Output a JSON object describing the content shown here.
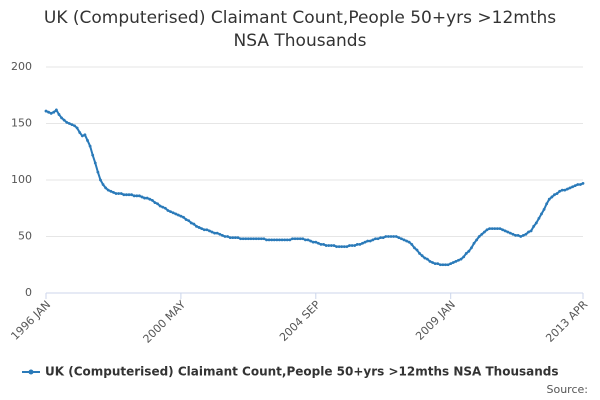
{
  "chart_data": {
    "type": "line",
    "title": [
      "UK (Computerised) Claimant Count,People 50+yrs >12mths",
      "NSA Thousands"
    ],
    "source": "Source:",
    "categories": [
      "1996 JAN",
      null,
      null,
      null,
      null,
      null,
      null,
      null,
      null,
      null,
      null,
      null,
      null,
      null,
      null,
      null,
      null,
      null,
      null,
      null,
      null,
      null,
      null,
      null,
      null,
      null,
      null,
      null,
      null,
      null,
      null,
      null,
      null,
      null,
      null,
      null,
      null,
      null,
      null,
      null,
      null,
      null,
      null,
      null,
      null,
      null,
      null,
      null,
      null,
      null,
      null,
      null,
      "2000 MAY",
      null,
      null,
      null,
      null,
      null,
      null,
      null,
      null,
      null,
      null,
      null,
      null,
      null,
      null,
      null,
      null,
      null,
      null,
      null,
      null,
      null,
      null,
      null,
      null,
      null,
      null,
      null,
      null,
      null,
      null,
      null,
      null,
      null,
      null,
      null,
      null,
      null,
      null,
      null,
      null,
      null,
      null,
      null,
      null,
      null,
      null,
      null,
      null,
      null,
      null,
      null,
      "2004 SEP",
      null,
      null,
      null,
      null,
      null,
      null,
      null,
      null,
      null,
      null,
      null,
      null,
      null,
      null,
      null,
      null,
      null,
      null,
      null,
      null,
      null,
      null,
      null,
      null,
      null,
      null,
      null,
      null,
      null,
      null,
      null,
      null,
      null,
      null,
      null,
      null,
      null,
      null,
      null,
      null,
      null,
      null,
      null,
      null,
      null,
      null,
      null,
      null,
      null,
      null,
      null,
      "2009 JAN",
      null,
      null,
      null,
      null,
      null,
      null,
      null,
      null,
      null,
      null,
      null,
      null,
      null,
      null,
      null,
      null,
      null,
      null,
      null,
      null,
      null,
      null,
      null,
      null,
      null,
      null,
      null,
      null,
      null,
      null,
      null,
      null,
      null,
      null,
      null,
      null,
      null,
      null,
      null,
      null,
      null,
      null,
      null,
      null,
      null,
      null,
      null,
      null,
      null,
      null,
      "2013 APR"
    ],
    "series": [
      {
        "name": "UK (Computerised) Claimant Count,People 50+yrs >12mths NSA Thousands",
        "color": "#2a7ab9",
        "values": [
          161,
          160,
          159,
          160,
          162,
          158,
          155,
          153,
          151,
          150,
          149,
          148,
          146,
          142,
          139,
          140,
          135,
          130,
          122,
          115,
          107,
          100,
          96,
          93,
          91,
          90,
          89,
          88,
          88,
          88,
          87,
          87,
          87,
          87,
          86,
          86,
          86,
          85,
          84,
          84,
          83,
          82,
          80,
          79,
          77,
          76,
          75,
          73,
          72,
          71,
          70,
          69,
          68,
          67,
          65,
          64,
          62,
          61,
          59,
          58,
          57,
          56,
          56,
          55,
          54,
          53,
          53,
          52,
          51,
          50,
          50,
          49,
          49,
          49,
          49,
          48,
          48,
          48,
          48,
          48,
          48,
          48,
          48,
          48,
          48,
          47,
          47,
          47,
          47,
          47,
          47,
          47,
          47,
          47,
          47,
          48,
          48,
          48,
          48,
          48,
          47,
          47,
          46,
          45,
          45,
          44,
          43,
          43,
          42,
          42,
          42,
          42,
          41,
          41,
          41,
          41,
          41,
          42,
          42,
          42,
          43,
          43,
          44,
          45,
          46,
          46,
          47,
          48,
          48,
          49,
          49,
          50,
          50,
          50,
          50,
          50,
          49,
          48,
          47,
          46,
          45,
          43,
          40,
          38,
          35,
          33,
          31,
          30,
          28,
          27,
          26,
          26,
          25,
          25,
          25,
          25,
          26,
          27,
          28,
          29,
          30,
          32,
          35,
          37,
          40,
          44,
          47,
          50,
          52,
          54,
          56,
          57,
          57,
          57,
          57,
          57,
          56,
          55,
          54,
          53,
          52,
          51,
          51,
          50,
          51,
          52,
          54,
          55,
          59,
          62,
          66,
          70,
          74,
          79,
          83,
          85,
          87,
          88,
          90,
          91,
          91,
          92,
          93,
          94,
          95,
          96,
          96,
          97
        ]
      }
    ],
    "ylim": [
      0,
      200
    ],
    "yticks": [
      0,
      50,
      100,
      150,
      200
    ],
    "grid": true
  }
}
